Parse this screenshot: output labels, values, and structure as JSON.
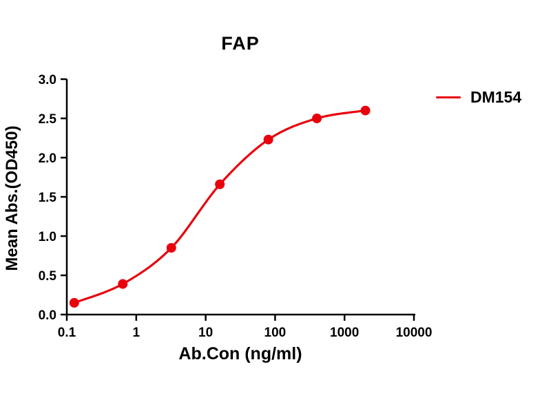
{
  "chart_data": {
    "type": "line",
    "title": "FAP",
    "xlabel": "Ab.Con (ng/ml)",
    "ylabel": "Mean Abs.(OD450)",
    "x_scale": "log",
    "xlim": [
      0.1,
      10000
    ],
    "ylim": [
      0.0,
      3.0
    ],
    "grid": false,
    "legend_position": "right",
    "x_ticks": [
      0.1,
      1,
      10,
      100,
      1000,
      10000
    ],
    "x_tick_labels": [
      "0.1",
      "1",
      "10",
      "100",
      "1000",
      "10000"
    ],
    "y_ticks": [
      0.0,
      0.5,
      1.0,
      1.5,
      2.0,
      2.5,
      3.0
    ],
    "y_tick_labels": [
      "0.0",
      "0.5",
      "1.0",
      "1.5",
      "2.0",
      "2.5",
      "3.0"
    ],
    "series": [
      {
        "name": "DM154",
        "color": "#e8000d",
        "marker": "circle",
        "x": [
          0.128,
          0.64,
          3.2,
          16,
          80,
          400,
          2000
        ],
        "y": [
          0.15,
          0.39,
          0.85,
          1.66,
          2.23,
          2.5,
          2.6
        ]
      }
    ]
  }
}
